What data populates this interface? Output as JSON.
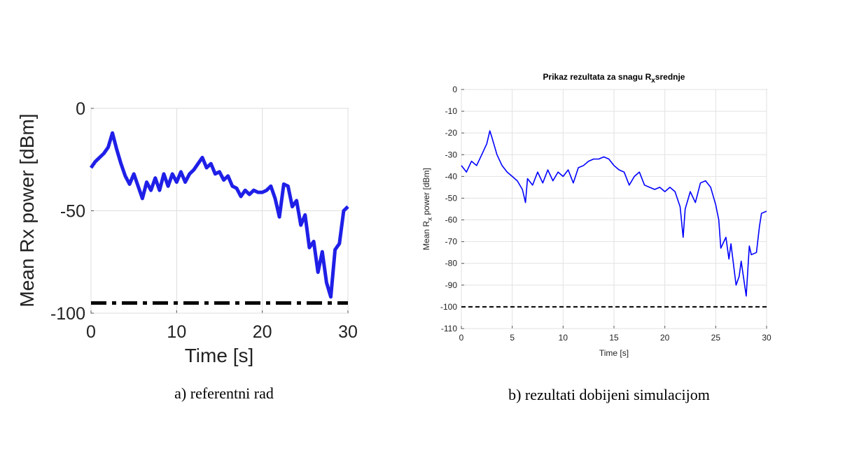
{
  "charts": [
    {
      "id": "a",
      "caption": "a) referentni rad",
      "chart_data": {
        "type": "line",
        "title": "",
        "xlabel": "Time [s]",
        "ylabel": "Mean Rx power [dBm]",
        "xlim": [
          0,
          30
        ],
        "ylim": [
          -100,
          0
        ],
        "xticks": [
          "0",
          "10",
          "20",
          "30"
        ],
        "yticks": [
          "0",
          "-50",
          "-100"
        ],
        "grid": true,
        "series": [
          {
            "color": "#1f1fe8",
            "style": "solid",
            "x": [
              0,
              0.5,
              1,
              1.5,
              2,
              2.5,
              3,
              3.5,
              4,
              4.5,
              5,
              5.5,
              6,
              6.5,
              7,
              7.5,
              8,
              8.5,
              9,
              9.5,
              10,
              10.5,
              11,
              11.5,
              12,
              12.5,
              13,
              13.5,
              14,
              14.5,
              15,
              15.5,
              16,
              16.5,
              17,
              17.5,
              18,
              18.5,
              19,
              19.5,
              20,
              20.5,
              21,
              21.5,
              22,
              22.5,
              23,
              23.5,
              24,
              24.5,
              25,
              25.5,
              26,
              26.5,
              27,
              27.5,
              28,
              28.5,
              29,
              29.5,
              30
            ],
            "y": [
              -29,
              -26,
              -24,
              -22,
              -19,
              -12,
              -20,
              -27,
              -33,
              -37,
              -32,
              -38,
              -44,
              -36,
              -40,
              -34,
              -40,
              -32,
              -38,
              -32,
              -36,
              -31,
              -36,
              -32,
              -30,
              -27,
              -24,
              -29,
              -27,
              -32,
              -31,
              -35,
              -33,
              -38,
              -39,
              -43,
              -40,
              -42,
              -40,
              -41,
              -41,
              -40,
              -38,
              -44,
              -53,
              -37,
              -38,
              -48,
              -45,
              -57,
              -52,
              -68,
              -65,
              -80,
              -70,
              -85,
              -92,
              -69,
              -66,
              -50,
              -48
            ]
          },
          {
            "color": "#000000",
            "style": "dash-dot",
            "x": [
              0,
              30
            ],
            "y": [
              -95,
              -95
            ]
          }
        ]
      }
    },
    {
      "id": "b",
      "caption": "b) rezultati dobijeni simulacijom",
      "chart_data": {
        "type": "line",
        "title": "Prikaz rezultata za snagu Rₓsrednje",
        "title_main": "Prikaz rezultata za snagu R",
        "title_sub": "x",
        "title_end": "srednje",
        "xlabel": "Time [s]",
        "ylabel_main": "Mean R",
        "ylabel_sub": "x",
        "ylabel_end": " power [dBm]",
        "xlim": [
          0,
          30
        ],
        "ylim": [
          -110,
          0
        ],
        "xticks": [
          "0",
          "5",
          "10",
          "15",
          "20",
          "25",
          "30"
        ],
        "yticks": [
          "0",
          "-10",
          "-20",
          "-30",
          "-40",
          "-50",
          "-60",
          "-70",
          "-80",
          "-90",
          "-100",
          "-110"
        ],
        "grid": true,
        "series": [
          {
            "color": "#0000ff",
            "style": "solid",
            "x": [
              0,
              0.5,
              1,
              1.5,
              2,
              2.5,
              2.8,
              3,
              3.5,
              4,
              4.5,
              5,
              5.5,
              6,
              6.3,
              6.5,
              7,
              7.5,
              8,
              8.5,
              9,
              9.5,
              10,
              10.5,
              11,
              11.5,
              12,
              12.5,
              13,
              13.5,
              14,
              14.5,
              15,
              15.5,
              16,
              16.5,
              17,
              17.5,
              18,
              18.5,
              19,
              19.5,
              20,
              20.5,
              21,
              21.5,
              21.8,
              22,
              22.5,
              23,
              23.5,
              24,
              24.5,
              25,
              25.3,
              25.5,
              26,
              26.3,
              26.5,
              27,
              27.3,
              27.5,
              28,
              28.3,
              28.5,
              29,
              29.3,
              29.5,
              30
            ],
            "y": [
              -35,
              -38,
              -33,
              -35,
              -30,
              -25,
              -19,
              -22,
              -30,
              -35,
              -38,
              -40,
              -42,
              -46,
              -52,
              -41,
              -44,
              -38,
              -43,
              -37,
              -42,
              -38,
              -40,
              -37,
              -43,
              -36,
              -35,
              -33,
              -32,
              -32,
              -31,
              -32,
              -35,
              -37,
              -38,
              -44,
              -40,
              -38,
              -44,
              -45,
              -46,
              -45,
              -47,
              -45,
              -47,
              -54,
              -68,
              -55,
              -47,
              -52,
              -43,
              -42,
              -45,
              -53,
              -60,
              -73,
              -68,
              -78,
              -71,
              -90,
              -86,
              -79,
              -95,
              -72,
              -76,
              -75,
              -63,
              -57,
              -56
            ]
          },
          {
            "color": "#000000",
            "style": "dashed",
            "x": [
              0,
              30
            ],
            "y": [
              -100,
              -100
            ]
          }
        ]
      }
    }
  ]
}
